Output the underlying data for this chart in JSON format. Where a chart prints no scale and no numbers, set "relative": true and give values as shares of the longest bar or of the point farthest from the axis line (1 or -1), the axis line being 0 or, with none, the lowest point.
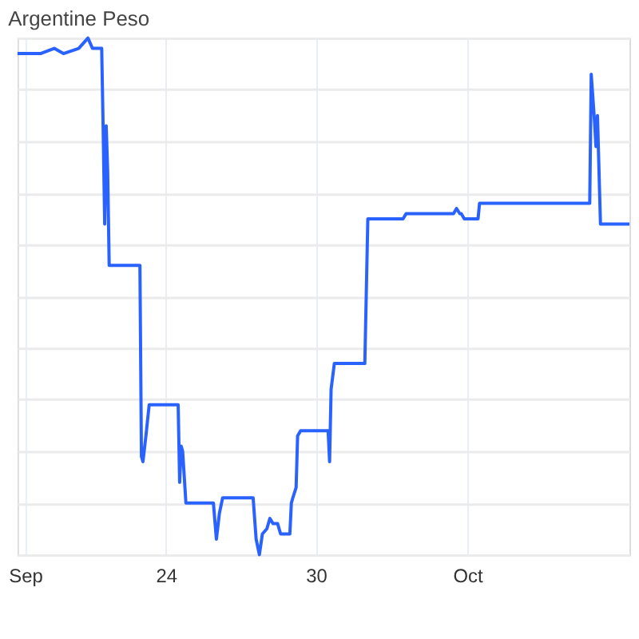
{
  "chart_data": {
    "type": "line",
    "title": "Argentine Peso",
    "relative": true,
    "grid": true,
    "tick_labels": "x",
    "xlim": [
      18.06,
      42.55
    ],
    "xticks": [
      {
        "value": 18.37,
        "label": "Sep"
      },
      {
        "value": 24,
        "label": "24"
      },
      {
        "value": 30,
        "label": "30"
      },
      {
        "value": 36.06,
        "label": "Oct"
      }
    ],
    "series": [
      {
        "color": "#2962ff",
        "x": [
          18.06,
          18.98,
          19.53,
          19.9,
          20.51,
          20.88,
          21.06,
          21.43,
          21.49,
          21.55,
          21.61,
          21.67,
          21.73,
          21.8,
          22.96,
          23.02,
          23.08,
          23.2,
          23.33,
          24.49,
          24.55,
          24.61,
          24.67,
          24.8,
          25.9,
          26.02,
          26.14,
          26.27,
          27.49,
          27.61,
          27.74,
          27.86,
          28.04,
          28.16,
          28.29,
          28.47,
          28.59,
          28.96,
          29.02,
          29.08,
          29.21,
          29.27,
          29.39,
          30.49,
          30.55,
          30.61,
          30.74,
          31.96,
          32.08,
          32.21,
          33.49,
          33.61,
          35.51,
          35.63,
          35.76,
          35.82,
          35.94,
          36.49,
          36.55,
          40.96,
          41.02,
          41.15,
          41.21,
          41.27,
          41.39,
          42.55
        ],
        "values": [
          0.97,
          0.97,
          0.98,
          0.97,
          0.98,
          1,
          0.98,
          0.98,
          0.82,
          0.64,
          0.83,
          0.74,
          0.56,
          0.56,
          0.56,
          0.19,
          0.18,
          0.23,
          0.29,
          0.29,
          0.14,
          0.21,
          0.2,
          0.1,
          0.1,
          0.03,
          0.08,
          0.11,
          0.11,
          0.03,
          0,
          0.04,
          0.05,
          0.07,
          0.06,
          0.06,
          0.04,
          0.04,
          0.1,
          0.11,
          0.13,
          0.23,
          0.24,
          0.24,
          0.18,
          0.32,
          0.37,
          0.37,
          0.65,
          0.65,
          0.65,
          0.66,
          0.66,
          0.67,
          0.66,
          0.66,
          0.65,
          0.65,
          0.68,
          0.68,
          0.93,
          0.84,
          0.79,
          0.85,
          0.64,
          0.64
        ]
      }
    ]
  }
}
